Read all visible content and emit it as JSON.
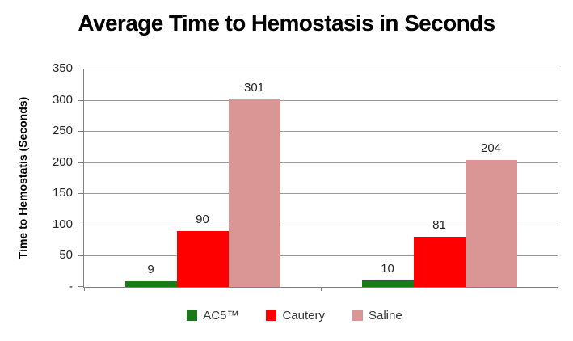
{
  "chart_data": {
    "type": "bar",
    "title": "Average Time to Hemostasis in Seconds",
    "ylabel": "Time to Hemostatis (Seconds)",
    "xlabel": "",
    "categories": [
      "",
      ""
    ],
    "series": [
      {
        "name": "AC5™",
        "color": "#1A7A1A",
        "values": [
          9,
          10
        ]
      },
      {
        "name": "Cautery",
        "color": "#FF0000",
        "values": [
          90,
          81
        ]
      },
      {
        "name": "Saline",
        "color": "#D99694",
        "values": [
          301,
          204
        ]
      }
    ],
    "data_labels_shown": true,
    "ylim": [
      0,
      350
    ],
    "yticks": [
      {
        "value": 350,
        "label": "350"
      },
      {
        "value": 300,
        "label": "300"
      },
      {
        "value": 250,
        "label": "250"
      },
      {
        "value": 200,
        "label": "200"
      },
      {
        "value": 150,
        "label": "150"
      },
      {
        "value": 100,
        "label": "100"
      },
      {
        "value": 50,
        "label": "50"
      },
      {
        "value": 0,
        "label": "-"
      }
    ],
    "grid": true,
    "legend_position": "bottom"
  },
  "style": {
    "grid_color": "#9a9a9a",
    "axis_color": "#808080",
    "title_color": "#000000",
    "label_color": "#262626",
    "legend_text_color": "#383838",
    "background": "#ffffff"
  }
}
